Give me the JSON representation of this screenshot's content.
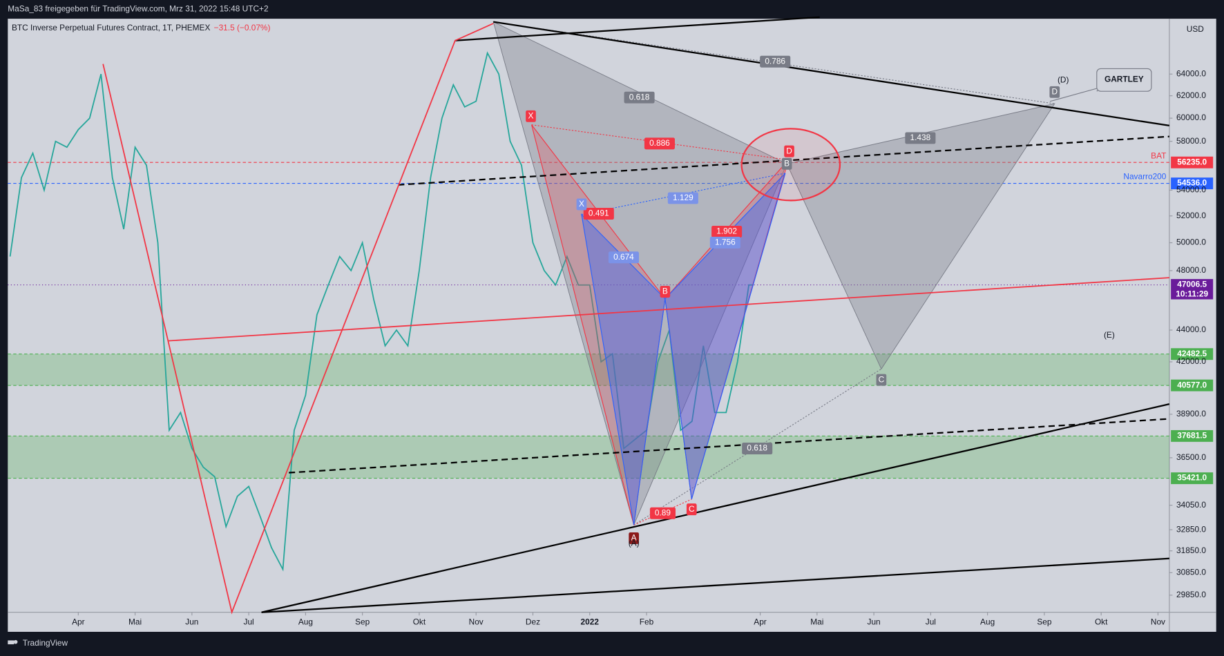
{
  "header": {
    "share_text": "MaSa_83 freigegeben für TradingView.com, Mrz 31, 2022 15:48 UTC+2",
    "brand": "TradingView"
  },
  "chart_data": {
    "type": "line",
    "title": "BTC Inverse Perpetual Futures Contract, 1T, PHEMEX",
    "change": "−31.5 (−0.07%)",
    "currency": "USD",
    "log_scale": true,
    "color": "#26a69a",
    "xlim": [
      -1.24,
      19.2
    ],
    "xticks": [
      {
        "value": 0,
        "label": "Apr"
      },
      {
        "value": 1,
        "label": "Mai"
      },
      {
        "value": 2,
        "label": "Jun"
      },
      {
        "value": 3,
        "label": "Jul"
      },
      {
        "value": 4,
        "label": "Aug"
      },
      {
        "value": 5,
        "label": "Sep"
      },
      {
        "value": 6,
        "label": "Okt"
      },
      {
        "value": 7,
        "label": "Nov"
      },
      {
        "value": 8,
        "label": "Dez"
      },
      9,
      {
        "value": 10,
        "label": "Feb"
      },
      {
        "value": 12,
        "label": "Apr"
      },
      {
        "value": 13,
        "label": "Mai"
      },
      {
        "value": 14,
        "label": "Jun"
      },
      {
        "value": 15,
        "label": "Jul"
      },
      {
        "value": 16,
        "label": "Aug"
      },
      {
        "value": 17,
        "label": "Sep"
      },
      {
        "value": 18,
        "label": "Okt"
      },
      {
        "value": 19,
        "label": "Nov"
      }
    ],
    "year_label": "2022",
    "ylim": [
      29110,
      69400
    ],
    "yticks": [
      {
        "value": 64000,
        "label": "64000.0"
      },
      {
        "value": 62000,
        "label": "62000.0"
      },
      {
        "value": 60000,
        "label": "60000.0"
      },
      {
        "value": 58000,
        "label": "58000.0"
      },
      {
        "value": 54000,
        "label": "54000.0"
      },
      {
        "value": 52000,
        "label": "52000.0"
      },
      {
        "value": 50000,
        "label": "50000.0"
      },
      {
        "value": 48000,
        "label": "48000.0"
      },
      {
        "value": 44000,
        "label": "44000.0"
      },
      {
        "value": 42000,
        "label": "42000.0"
      },
      {
        "value": 38900,
        "label": "38900.0"
      },
      {
        "value": 36500,
        "label": "36500.0"
      },
      {
        "value": 34050,
        "label": "34050.0"
      },
      {
        "value": 32850,
        "label": "32850.0"
      },
      {
        "value": 31850,
        "label": "31850.0"
      },
      {
        "value": 30850,
        "label": "30850.0"
      },
      {
        "value": 29850,
        "label": "29850.0"
      }
    ],
    "x": [
      -1.2,
      -1.0,
      -0.8,
      -0.6,
      -0.4,
      -0.2,
      0.0,
      0.2,
      0.4,
      0.6,
      0.8,
      1.0,
      1.2,
      1.4,
      1.6,
      1.8,
      2.0,
      2.2,
      2.4,
      2.6,
      2.8,
      3.0,
      3.2,
      3.4,
      3.6,
      3.8,
      4.0,
      4.2,
      4.4,
      4.6,
      4.8,
      5.0,
      5.2,
      5.4,
      5.6,
      5.8,
      6.0,
      6.2,
      6.4,
      6.6,
      6.8,
      7.0,
      7.2,
      7.4,
      7.6,
      7.8,
      8.0,
      8.2,
      8.4,
      8.6,
      8.8,
      9.0,
      9.2,
      9.4,
      9.6,
      9.8,
      10.0,
      10.2,
      10.4,
      10.6,
      10.8,
      11.0,
      11.2,
      11.4,
      11.6,
      11.8,
      11.88
    ],
    "values": [
      49000,
      55000,
      57000,
      54000,
      58000,
      57500,
      59000,
      60000,
      64000,
      55000,
      51000,
      57500,
      56000,
      50000,
      38000,
      39000,
      37000,
      36000,
      35500,
      33000,
      34500,
      35000,
      33500,
      32000,
      31000,
      38000,
      40000,
      45000,
      47000,
      49000,
      48000,
      50000,
      46000,
      43000,
      44000,
      43000,
      48000,
      55000,
      60000,
      63000,
      61000,
      61500,
      66000,
      64000,
      58000,
      56000,
      50000,
      48000,
      47000,
      49000,
      47000,
      47000,
      42000,
      42500,
      37000,
      37500,
      38000,
      42000,
      44000,
      38000,
      38500,
      43000,
      39000,
      39000,
      42000,
      47000,
      47006.5
    ],
    "price_labels": [
      {
        "value": 56235.0,
        "label": "56235.0",
        "color": "#f23645",
        "name": "BAT"
      },
      {
        "value": 54536.0,
        "label": "54536.0",
        "color": "#2962ff",
        "name": "Navarro200"
      },
      {
        "value": 47006.5,
        "label": "47006.5",
        "color": "#6a1b9a",
        "countdown": "10:11:29"
      },
      {
        "value": 42482.5,
        "label": "42482.5",
        "color": "#4caf50"
      },
      {
        "value": 40577.0,
        "label": "40577.0",
        "color": "#4caf50"
      },
      {
        "value": 37681.5,
        "label": "37681.5",
        "color": "#4caf50"
      },
      {
        "value": 35421.0,
        "label": "35421.0",
        "color": "#4caf50"
      }
    ],
    "ratios": [
      0.786,
      0.618,
      1.438,
      0.886,
      1.129,
      0.491,
      0.674,
      1.902,
      1.756,
      0.89,
      0.618
    ],
    "pattern_labels": [
      "X",
      "B",
      "C",
      "D",
      "A",
      "(A)",
      "D",
      "C",
      "B",
      "X",
      "(D)",
      "(E)",
      "GARTLEY"
    ]
  }
}
